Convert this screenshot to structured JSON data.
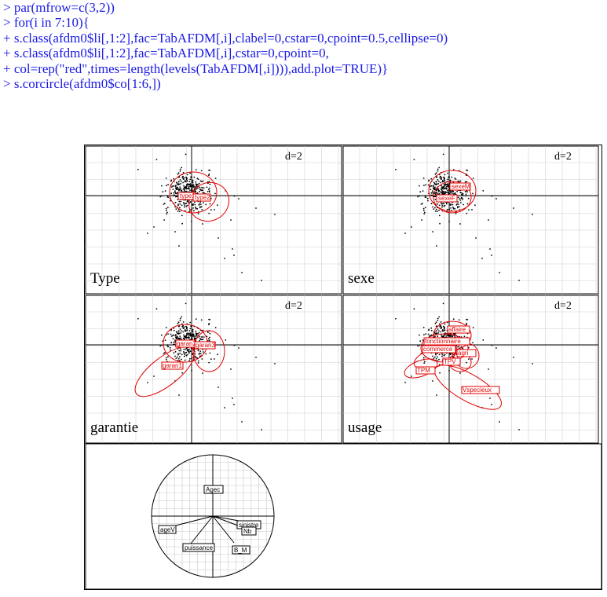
{
  "console": {
    "lines": [
      "> par(mfrow=c(3,2))",
      "> for(i in 7:10){",
      "+ s.class(afdm0$li[,1:2],fac=TabAFDM[,i],clabel=0,cstar=0,cpoint=0.5,cellipse=0)",
      "+ s.class(afdm0$li[,1:2],fac=TabAFDM[,i],cstar=0,cpoint=0,",
      "+ col=rep(\"red\",times=length(levels(TabAFDM[,i]))),add.plot=TRUE)}",
      "> s.corcircle(afdm0$co[1:6,])"
    ],
    "color": "#1a1ae6"
  },
  "panels": [
    {
      "name": "Type",
      "d": "d=2",
      "labels": [
        "type1",
        "type2"
      ]
    },
    {
      "name": "sexe",
      "d": "d=2",
      "labels": [
        "sexeM",
        "sexeF"
      ]
    },
    {
      "name": "garantie",
      "d": "d=2",
      "labels": [
        "garan1",
        "garan2",
        "garan3"
      ]
    },
    {
      "name": "usage",
      "d": "d=2",
      "labels": [
        "affaire",
        "fonctionnaire",
        "commerce",
        "agri",
        "TPV",
        "TPM",
        "Vspecieux"
      ]
    }
  ],
  "corcircle": {
    "variables": [
      "Agec",
      "ageV",
      "puissance",
      "sinistre",
      "Nb",
      "B_M"
    ]
  },
  "colors": {
    "code": "#1a1ae6",
    "ellipse": "#e00000",
    "axis": "#000000",
    "grid": "#cccccc"
  }
}
